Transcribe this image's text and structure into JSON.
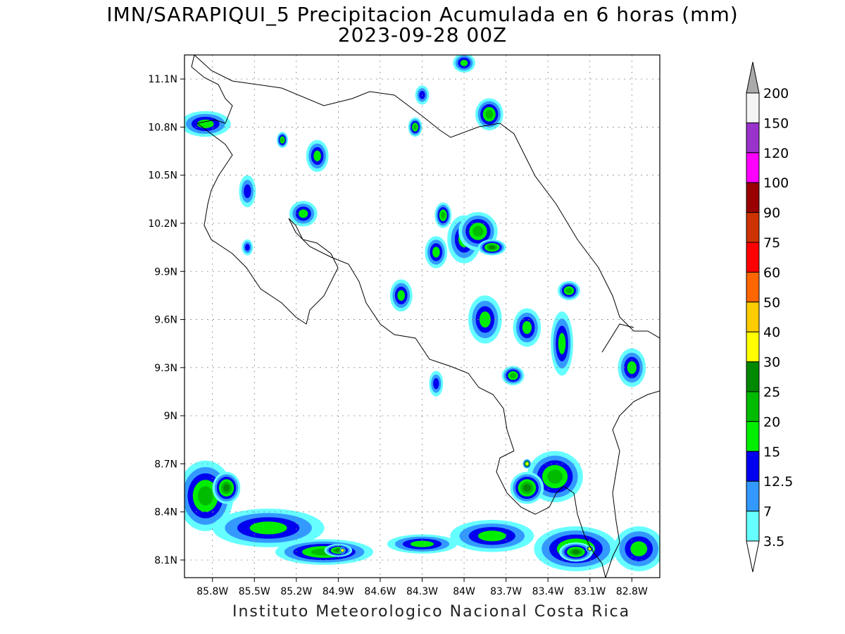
{
  "title": "IMN/SARAPIQUI_5 Precipitacion Acumulada en 6 horas (mm)",
  "subtitle": "2023-09-28 00Z",
  "footer": "Instituto Meteorologico Nacional Costa Rica",
  "map": {
    "lon_range": [
      -86.0,
      -82.6
    ],
    "lat_range": [
      7.99,
      11.25
    ],
    "grid_lines": "dotted"
  },
  "lat_ticks": [
    {
      "value": 11.1,
      "label": "11.1N"
    },
    {
      "value": 10.8,
      "label": "10.8N"
    },
    {
      "value": 10.5,
      "label": "10.5N"
    },
    {
      "value": 10.2,
      "label": "10.2N"
    },
    {
      "value": 9.9,
      "label": "9.9N"
    },
    {
      "value": 9.6,
      "label": "9.6N"
    },
    {
      "value": 9.3,
      "label": "9.3N"
    },
    {
      "value": 9.0,
      "label": "9N"
    },
    {
      "value": 8.7,
      "label": "8.7N"
    },
    {
      "value": 8.4,
      "label": "8.4N"
    },
    {
      "value": 8.1,
      "label": "8.1N"
    }
  ],
  "lon_ticks": [
    {
      "value": -85.8,
      "label": "85.8W"
    },
    {
      "value": -85.5,
      "label": "85.5W"
    },
    {
      "value": -85.2,
      "label": "85.2W"
    },
    {
      "value": -84.9,
      "label": "84.9W"
    },
    {
      "value": -84.6,
      "label": "84.6W"
    },
    {
      "value": -84.3,
      "label": "84.3W"
    },
    {
      "value": -84.0,
      "label": "84W"
    },
    {
      "value": -83.7,
      "label": "83.7W"
    },
    {
      "value": -83.4,
      "label": "83.4W"
    },
    {
      "value": -83.1,
      "label": "83.1W"
    },
    {
      "value": -82.8,
      "label": "82.8W"
    }
  ],
  "colorbar": {
    "levels": [
      "3.5",
      "7",
      "12.5",
      "15",
      "20",
      "25",
      "30",
      "40",
      "50",
      "60",
      "75",
      "90",
      "100",
      "120",
      "150",
      "200"
    ],
    "colors": [
      "#ffffff",
      "#66ffff",
      "#3399ff",
      "#0000ee",
      "#00ee00",
      "#00bb00",
      "#008800",
      "#ffff00",
      "#ffcc00",
      "#ff6600",
      "#ff0000",
      "#cc3300",
      "#990000",
      "#ff00ff",
      "#9933cc",
      "#f4f4f4",
      "#aaaaaa"
    ]
  },
  "precip_cells": [
    [
      -83.35,
      8.62,
      0.2,
      0.16,
      5
    ],
    [
      -83.55,
      8.55,
      0.12,
      0.1,
      6
    ],
    [
      -83.55,
      8.7,
      0.03,
      0.03,
      7
    ],
    [
      -83.2,
      8.17,
      0.3,
      0.14,
      5
    ],
    [
      -83.2,
      8.15,
      0.12,
      0.06,
      6
    ],
    [
      -83.1,
      8.17,
      0.03,
      0.02,
      7
    ],
    [
      -82.75,
      8.17,
      0.18,
      0.14,
      4
    ],
    [
      -85.85,
      8.5,
      0.2,
      0.22,
      5
    ],
    [
      -85.7,
      8.55,
      0.1,
      0.1,
      6
    ],
    [
      -85.4,
      8.3,
      0.4,
      0.12,
      4
    ],
    [
      -85.0,
      8.15,
      0.35,
      0.08,
      5
    ],
    [
      -84.9,
      8.16,
      0.1,
      0.04,
      6
    ],
    [
      -84.87,
      8.16,
      0.02,
      0.02,
      7
    ],
    [
      -84.3,
      8.2,
      0.25,
      0.06,
      4
    ],
    [
      -83.8,
      8.25,
      0.3,
      0.1,
      4
    ],
    [
      -84.0,
      10.1,
      0.12,
      0.15,
      4
    ],
    [
      -83.9,
      10.15,
      0.14,
      0.12,
      5
    ],
    [
      -83.8,
      10.05,
      0.1,
      0.05,
      6
    ],
    [
      -84.15,
      10.25,
      0.06,
      0.08,
      5
    ],
    [
      -83.8,
      10.85,
      0.06,
      0.06,
      6
    ],
    [
      -83.82,
      10.88,
      0.1,
      0.1,
      5
    ],
    [
      -84.35,
      10.8,
      0.05,
      0.06,
      5
    ],
    [
      -85.85,
      10.82,
      0.18,
      0.08,
      4
    ],
    [
      -85.3,
      10.72,
      0.04,
      0.05,
      5
    ],
    [
      -85.05,
      10.62,
      0.08,
      0.1,
      4
    ],
    [
      -85.15,
      10.26,
      0.1,
      0.08,
      4
    ],
    [
      -83.25,
      9.78,
      0.08,
      0.06,
      5
    ],
    [
      -82.8,
      9.3,
      0.1,
      0.12,
      4
    ],
    [
      -83.65,
      9.25,
      0.08,
      0.06,
      5
    ],
    [
      -84.2,
      10.02,
      0.08,
      0.1,
      4
    ],
    [
      -84.45,
      9.75,
      0.08,
      0.1,
      4
    ],
    [
      -83.55,
      9.55,
      0.1,
      0.12,
      4
    ],
    [
      -83.3,
      9.45,
      0.08,
      0.2,
      4
    ],
    [
      -83.85,
      9.6,
      0.12,
      0.15,
      4
    ],
    [
      -85.55,
      10.4,
      0.06,
      0.1,
      3
    ],
    [
      -85.55,
      10.05,
      0.04,
      0.05,
      3
    ],
    [
      -84.2,
      9.2,
      0.05,
      0.08,
      3
    ],
    [
      -84.3,
      11.0,
      0.05,
      0.06,
      3
    ],
    [
      -84.0,
      11.2,
      0.08,
      0.06,
      4
    ]
  ]
}
